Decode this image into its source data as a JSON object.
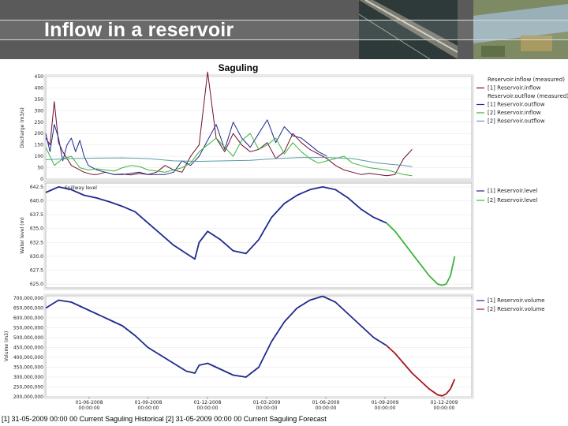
{
  "slide": {
    "title": "Inflow in a reservoir",
    "footer": "[1] 31-05-2009 00:00 00 Current Saguling Historical [2] 31-05-2009 00:00 00 Current Saguling Forecast"
  },
  "colors": {
    "navy": "#1f2a8c",
    "red": "#a8141e",
    "darkred": "#6e0f2a",
    "green": "#3cb43c",
    "teal": "#5a9aa0"
  },
  "chart_data": [
    {
      "type": "line",
      "title": "Saguling",
      "ylabel": "Discharge (m3/s)",
      "ylim": [
        0,
        450
      ],
      "yticks": [
        "0",
        "50",
        "100",
        "150",
        "200",
        "250",
        "300",
        "350",
        "400",
        "450"
      ],
      "xlim": [
        0,
        100
      ],
      "legend_position": "right",
      "series": [
        {
          "name": "Reservoir.inflow (measured)",
          "color": "#a8141e",
          "values": []
        },
        {
          "name": "[1] Reservoir.inflow",
          "color": "#6e0f2a",
          "x": [
            0,
            1,
            2,
            3,
            4,
            5,
            6,
            7,
            8,
            9,
            10,
            11,
            12,
            13,
            14,
            16,
            18,
            20,
            22,
            24,
            26,
            28,
            30,
            32,
            34,
            36,
            38,
            40,
            42,
            44,
            46,
            48,
            50,
            52,
            54,
            56,
            58,
            60,
            62,
            64,
            66,
            68,
            70,
            72,
            74,
            76,
            78,
            80,
            82,
            84,
            86
          ],
          "values": [
            180,
            150,
            340,
            160,
            120,
            90,
            60,
            50,
            40,
            30,
            25,
            20,
            20,
            25,
            30,
            20,
            22,
            18,
            25,
            20,
            30,
            60,
            40,
            30,
            100,
            150,
            470,
            180,
            120,
            200,
            150,
            120,
            130,
            160,
            90,
            120,
            200,
            160,
            130,
            110,
            90,
            60,
            40,
            30,
            20,
            25,
            20,
            15,
            20,
            90,
            130
          ]
        },
        {
          "name": "Reservoir.outflow (measured)",
          "color": "#1f2a8c",
          "values": []
        },
        {
          "name": "[1] Reservoir.outflow",
          "color": "#1f2a8c",
          "x": [
            0,
            1,
            2,
            3,
            4,
            5,
            6,
            7,
            8,
            9,
            10,
            12,
            14,
            16,
            18,
            20,
            22,
            24,
            26,
            28,
            30,
            32,
            34,
            36,
            38,
            40,
            42,
            44,
            46,
            48,
            50,
            52,
            54,
            56,
            58,
            60,
            62,
            64,
            66
          ],
          "values": [
            200,
            120,
            240,
            180,
            80,
            150,
            180,
            120,
            170,
            100,
            60,
            40,
            30,
            20,
            20,
            25,
            30,
            20,
            20,
            20,
            30,
            80,
            60,
            100,
            170,
            240,
            130,
            250,
            180,
            140,
            200,
            260,
            160,
            230,
            190,
            180,
            150,
            120,
            100
          ]
        },
        {
          "name": "[2] Reservoir.inflow",
          "color": "#3cb43c",
          "x": [
            0,
            2,
            4,
            6,
            8,
            10,
            12,
            14,
            16,
            18,
            20,
            22,
            24,
            26,
            28,
            30,
            32,
            34,
            36,
            38,
            40,
            42,
            44,
            46,
            48,
            50,
            52,
            54,
            56,
            58,
            60,
            62,
            64,
            66,
            68,
            70,
            72,
            74,
            76,
            78,
            80,
            82,
            84,
            86
          ],
          "values": [
            140,
            60,
            90,
            100,
            50,
            40,
            45,
            40,
            35,
            50,
            60,
            55,
            40,
            35,
            30,
            40,
            50,
            70,
            120,
            150,
            180,
            140,
            100,
            170,
            200,
            130,
            150,
            180,
            110,
            160,
            120,
            90,
            70,
            80,
            90,
            100,
            70,
            60,
            50,
            45,
            40,
            30,
            20,
            15
          ]
        },
        {
          "name": "[2] Reservoir.outflow",
          "color": "#5a9aa0",
          "x": [
            0,
            6,
            12,
            18,
            24,
            30,
            36,
            42,
            48,
            54,
            60,
            66,
            72,
            78,
            84,
            86
          ],
          "values": [
            85,
            90,
            92,
            93,
            90,
            80,
            78,
            80,
            82,
            90,
            95,
            95,
            90,
            70,
            60,
            55
          ]
        }
      ]
    },
    {
      "type": "line",
      "title": "",
      "ylabel": "Water level (m)",
      "ylim": [
        624.3,
        643.2
      ],
      "yticks": [
        "625.0",
        "627.5",
        "630.0",
        "632.5",
        "635.0",
        "637.5",
        "640.0",
        "642.5"
      ],
      "annotation": "Spillway level",
      "legend_position": "right",
      "series": [
        {
          "name": "[1] Reservoir.level",
          "color": "#1f2a8c",
          "x": [
            0,
            3,
            6,
            9,
            12,
            15,
            18,
            21,
            24,
            27,
            30,
            33,
            35,
            36,
            38,
            41,
            44,
            47,
            50,
            53,
            56,
            59,
            62,
            65,
            68,
            71,
            74,
            77,
            80
          ],
          "values": [
            641.5,
            642.5,
            642.0,
            641.0,
            640.5,
            639.8,
            639.0,
            638.0,
            636.0,
            634.0,
            632.0,
            630.5,
            629.5,
            632.5,
            634.5,
            633.0,
            631.0,
            630.5,
            633.0,
            637.0,
            639.5,
            641.0,
            642.0,
            642.5,
            642.0,
            640.5,
            638.5,
            637.0,
            636.0
          ]
        },
        {
          "name": "[2] Reservoir.level",
          "color": "#3cb43c",
          "x": [
            80,
            82,
            84,
            86,
            88,
            90,
            92,
            93,
            94,
            95,
            96
          ],
          "values": [
            636.0,
            634.5,
            632.5,
            630.5,
            628.5,
            626.5,
            625.0,
            624.8,
            625.0,
            626.5,
            630.0
          ]
        }
      ]
    },
    {
      "type": "line",
      "title": "",
      "ylabel": "Volume (m3)",
      "ylim": [
        200000000,
        712000000
      ],
      "yticks": [
        "200,000,000",
        "250,000,000",
        "300,000,000",
        "350,000,000",
        "400,000,000",
        "450,000,000",
        "500,000,000",
        "550,000,000",
        "600,000,000",
        "650,000,000",
        "700,000,000"
      ],
      "legend_position": "right",
      "series": [
        {
          "name": "[1] Reservoir.volume",
          "color": "#1f2a8c",
          "x": [
            0,
            3,
            6,
            9,
            12,
            15,
            18,
            21,
            24,
            27,
            30,
            33,
            35,
            36,
            38,
            41,
            44,
            47,
            50,
            53,
            56,
            59,
            62,
            65,
            68,
            71,
            74,
            77,
            80
          ],
          "values": [
            650000000,
            690000000,
            680000000,
            650000000,
            620000000,
            590000000,
            560000000,
            510000000,
            450000000,
            410000000,
            370000000,
            330000000,
            320000000,
            360000000,
            370000000,
            340000000,
            310000000,
            300000000,
            350000000,
            480000000,
            580000000,
            650000000,
            690000000,
            710000000,
            680000000,
            620000000,
            560000000,
            500000000,
            460000000
          ]
        },
        {
          "name": "[2] Reservoir.volume",
          "color": "#a8141e",
          "x": [
            80,
            82,
            84,
            86,
            88,
            90,
            92,
            93,
            94,
            95,
            96
          ],
          "values": [
            460000000,
            420000000,
            370000000,
            320000000,
            280000000,
            240000000,
            210000000,
            205000000,
            215000000,
            240000000,
            290000000
          ]
        }
      ],
      "xticks": [
        {
          "date": "01-06-2008",
          "time": "00:00:00"
        },
        {
          "date": "01-09-2008",
          "time": "00:00:00"
        },
        {
          "date": "01-12-2008",
          "time": "00:00:00"
        },
        {
          "date": "01-03-2009",
          "time": "00:00:00"
        },
        {
          "date": "01-06-2009",
          "time": "00:00:00"
        },
        {
          "date": "01-09-2009",
          "time": "00:00:00"
        },
        {
          "date": "01-12-2009",
          "time": "00:00:00"
        }
      ]
    }
  ]
}
